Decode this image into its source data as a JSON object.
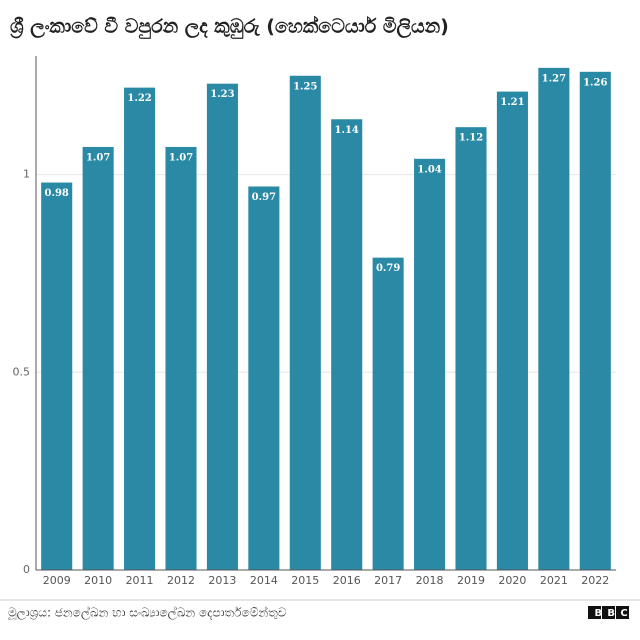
{
  "chart_data": {
    "type": "bar",
    "title": "ශ්‍රී ලංකාවේ වී වපුරන ලද කුඹුරු (හෙක්ටෙයාර් මිලියන)",
    "categories": [
      "2009",
      "2010",
      "2011",
      "2012",
      "2013",
      "2014",
      "2015",
      "2016",
      "2017",
      "2018",
      "2019",
      "2020",
      "2021",
      "2022"
    ],
    "values": [
      0.98,
      1.07,
      1.22,
      1.07,
      1.23,
      0.97,
      1.25,
      1.14,
      0.79,
      1.04,
      1.12,
      1.21,
      1.27,
      1.26
    ],
    "color": "#2a8aa6",
    "ylim": [
      0,
      1.3
    ],
    "yticks": [
      0,
      0.5,
      1
    ],
    "grid": true,
    "source": "මූලාශ්‍රය: ජනලේඛන හා සංඛ්‍යාලේඛන දෙපාර්තමේන්තුව",
    "logo": "BBC"
  }
}
